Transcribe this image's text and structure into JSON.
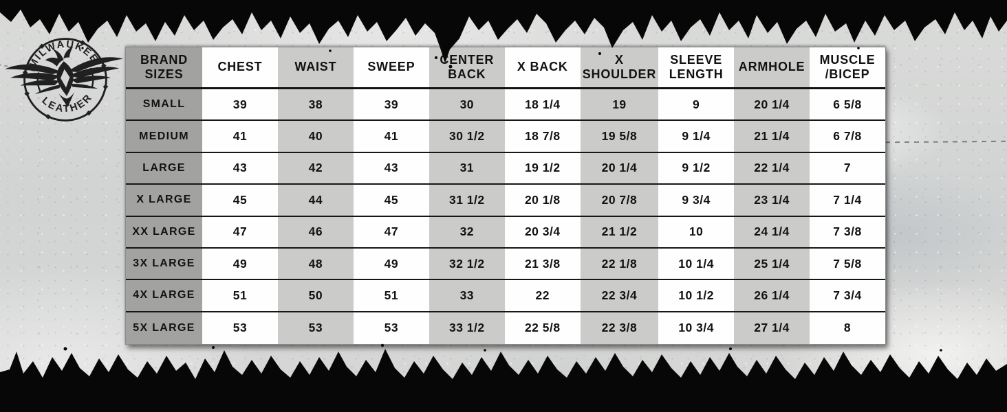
{
  "page": {
    "description": "Milwaukee Leather brand sizes chart on concrete background with torn black edges"
  },
  "logo": {
    "arc_top": "MILWAUKEE",
    "arc_bottom": "LEATHER"
  },
  "chart_data": {
    "type": "table",
    "title": "Milwaukee Leather Brand Sizes Chart",
    "columns": [
      "BRAND SIZES",
      "CHEST",
      "WAIST",
      "SWEEP",
      "CENTER BACK",
      "X BACK",
      "X SHOULDER",
      "SLEEVE LENGTH",
      "ARMHOLE",
      "MUSCLE /BICEP"
    ],
    "rows": [
      {
        "size": "SMALL",
        "values": [
          "39",
          "38",
          "39",
          "30",
          "18 1/4",
          "19",
          "9",
          "20 1/4",
          "6 5/8"
        ]
      },
      {
        "size": "MEDIUM",
        "values": [
          "41",
          "40",
          "41",
          "30 1/2",
          "18 7/8",
          "19 5/8",
          "9 1/4",
          "21 1/4",
          "6 7/8"
        ]
      },
      {
        "size": "LARGE",
        "values": [
          "43",
          "42",
          "43",
          "31",
          "19 1/2",
          "20 1/4",
          "9 1/2",
          "22 1/4",
          "7"
        ]
      },
      {
        "size": "X LARGE",
        "values": [
          "45",
          "44",
          "45",
          "31 1/2",
          "20 1/8",
          "20 7/8",
          "9 3/4",
          "23 1/4",
          "7 1/4"
        ]
      },
      {
        "size": "XX LARGE",
        "values": [
          "47",
          "46",
          "47",
          "32",
          "20 3/4",
          "21 1/2",
          "10",
          "24 1/4",
          "7 3/8"
        ]
      },
      {
        "size": "3X LARGE",
        "values": [
          "49",
          "48",
          "49",
          "32 1/2",
          "21 3/8",
          "22 1/8",
          "10 1/4",
          "25 1/4",
          "7 5/8"
        ]
      },
      {
        "size": "4X LARGE",
        "values": [
          "51",
          "50",
          "51",
          "33",
          "22",
          "22 3/4",
          "10 1/2",
          "26 1/4",
          "7 3/4"
        ]
      },
      {
        "size": "5X LARGE",
        "values": [
          "53",
          "53",
          "53",
          "33 1/2",
          "22 5/8",
          "22 3/8",
          "10 3/4",
          "27 1/4",
          "8"
        ]
      }
    ],
    "layout": {
      "grid": "horizontal-black-rules",
      "legend_position": "none",
      "first_column_color": "#a2a2a0",
      "striped_column_color": "#cbcbca",
      "plain_column_color": "#fefefe"
    }
  },
  "colors": {
    "edge_black": "#070707",
    "table_text": "#121212",
    "concrete_base": "#d3d5d4"
  }
}
